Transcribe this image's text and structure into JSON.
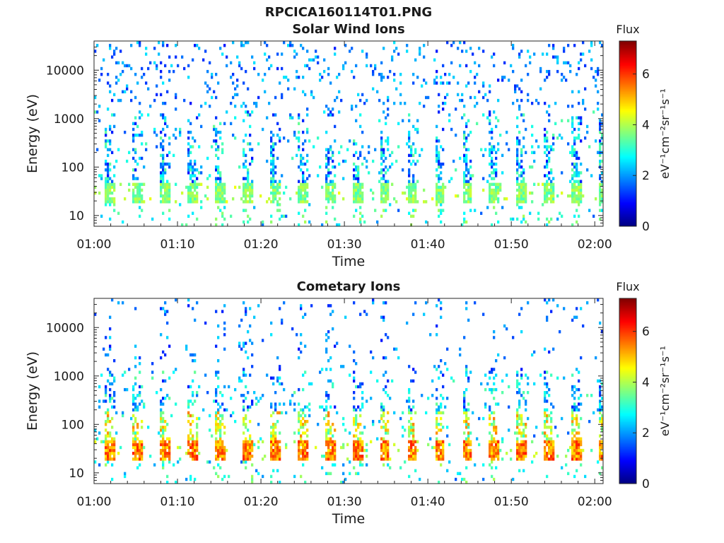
{
  "figure": {
    "title": "RPCICA160114T01.PNG"
  },
  "chart_data": [
    {
      "type": "heatmap",
      "title": "Solar Wind Ions",
      "xlabel": "Time",
      "ylabel": "Energy (eV)",
      "x_tick_labels": [
        "01:00",
        "01:10",
        "01:20",
        "01:30",
        "01:40",
        "01:50",
        "02:00"
      ],
      "x_range_minutes": [
        0,
        61
      ],
      "y_scale": "log",
      "y_tick_labels": [
        "10",
        "100",
        "1000",
        "10000"
      ],
      "y_range_eV": [
        6,
        40000
      ],
      "colorbar": {
        "title": "Flux",
        "label": "eV⁻¹cm⁻²sr⁻¹s⁻¹",
        "ticks": [
          "0",
          "2",
          "4",
          "6"
        ],
        "range": [
          0,
          7.3
        ],
        "colormap": "jet"
      },
      "pattern": {
        "sweep_period_minutes": 3.3,
        "peak_band_eV": [
          18,
          45
        ],
        "peak_flux": 4.2,
        "high_energy_flux": 2.0
      },
      "grid": false
    },
    {
      "type": "heatmap",
      "title": "Cometary Ions",
      "xlabel": "Time",
      "ylabel": "Energy (eV)",
      "x_tick_labels": [
        "01:00",
        "01:10",
        "01:20",
        "01:30",
        "01:40",
        "01:50",
        "02:00"
      ],
      "x_range_minutes": [
        0,
        61
      ],
      "y_scale": "log",
      "y_tick_labels": [
        "10",
        "100",
        "1000",
        "10000"
      ],
      "y_range_eV": [
        6,
        40000
      ],
      "colorbar": {
        "title": "Flux",
        "label": "eV⁻¹cm⁻²sr⁻¹s⁻¹",
        "ticks": [
          "0",
          "2",
          "4",
          "6"
        ],
        "range": [
          0,
          7.3
        ],
        "colormap": "jet"
      },
      "pattern": {
        "sweep_period_minutes": 3.3,
        "peak_band_eV": [
          18,
          45
        ],
        "peak_flux": 6.2,
        "high_energy_flux": 2.0
      },
      "grid": false
    }
  ]
}
